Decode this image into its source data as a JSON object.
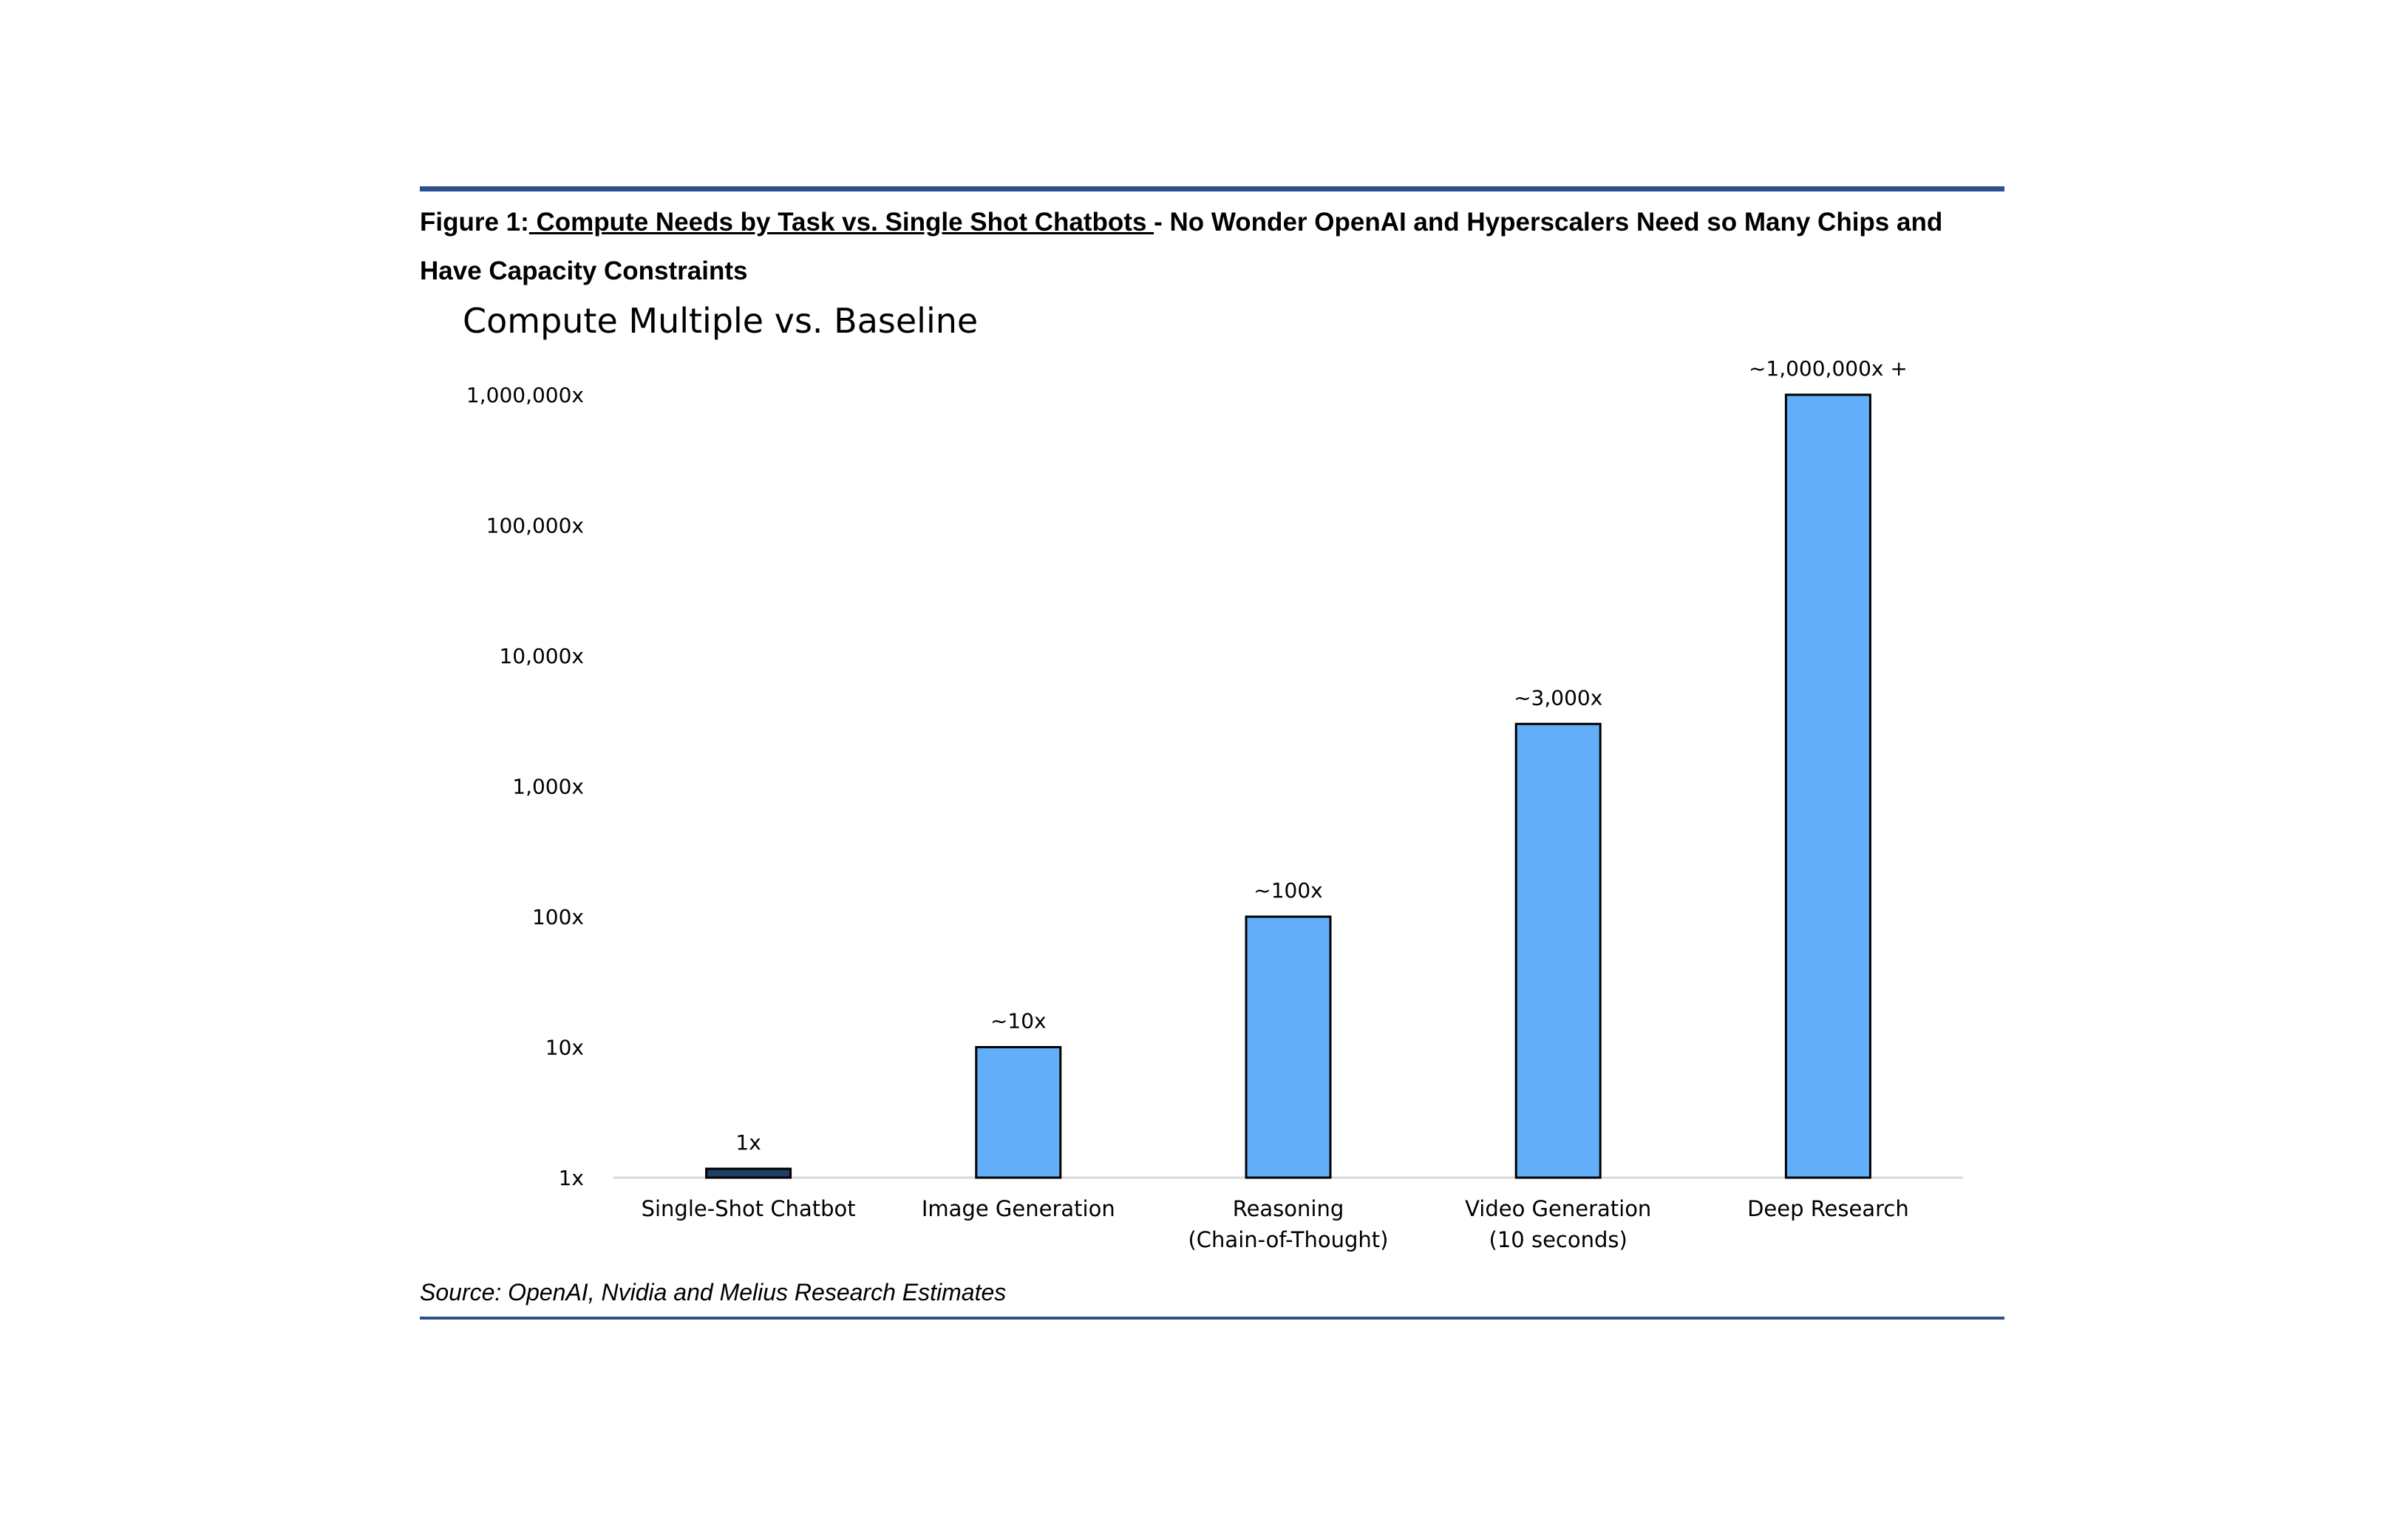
{
  "caption": {
    "prefix": "Figure 1:",
    "underlined": " Compute Needs by Task vs. Single Shot Chatbots ",
    "rest": "- No Wonder OpenAI and Hyperscalers Need so Many Chips and Have Capacity Constraints"
  },
  "source": "Source: OpenAI, Nvidia and Melius Research Estimates",
  "colors": {
    "rule": "#2f4f8f",
    "bar": "#63aef8",
    "baseline_bar": "#1f3f66",
    "axis": "#d9d9d9"
  },
  "chart_data": {
    "type": "bar",
    "title": "Compute Multiple vs. Baseline",
    "yscale": "log",
    "ylim": [
      1,
      1000000
    ],
    "yticks": [
      {
        "value": 1,
        "label": "1x"
      },
      {
        "value": 10,
        "label": "10x"
      },
      {
        "value": 100,
        "label": "100x"
      },
      {
        "value": 1000,
        "label": "1,000x"
      },
      {
        "value": 10000,
        "label": "10,000x"
      },
      {
        "value": 100000,
        "label": "100,000x"
      },
      {
        "value": 1000000,
        "label": "1,000,000x"
      }
    ],
    "categories": [
      [
        "Single-Shot Chatbot"
      ],
      [
        "Image Generation"
      ],
      [
        "Reasoning",
        "(Chain-of-Thought)"
      ],
      [
        "Video Generation",
        "(10 seconds)"
      ],
      [
        "Deep Research"
      ]
    ],
    "values": [
      1,
      10,
      100,
      3000,
      1000000
    ],
    "data_labels": [
      "1x",
      "~10x",
      "~100x",
      "~3,000x",
      "~1,000,000x +"
    ],
    "xlabel": "",
    "ylabel": "",
    "grid": false
  }
}
